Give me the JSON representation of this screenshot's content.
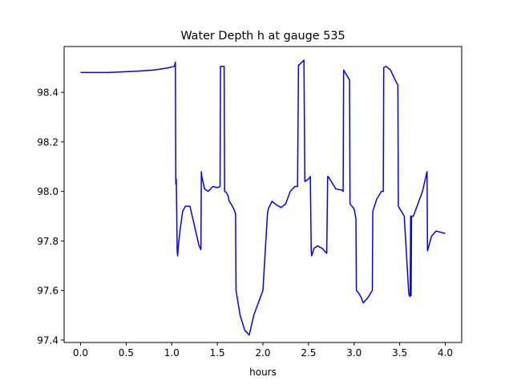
{
  "chart_data": {
    "type": "line",
    "title": "Water Depth h at gauge 535",
    "xlabel": "hours",
    "ylabel": "",
    "xlim": [
      -0.18,
      4.18
    ],
    "ylim": [
      97.39,
      98.585
    ],
    "xticks": [
      0.0,
      0.5,
      1.0,
      1.5,
      2.0,
      2.5,
      3.0,
      3.5,
      4.0
    ],
    "xtick_labels": [
      "0.0",
      "0.5",
      "1.0",
      "1.5",
      "2.0",
      "2.5",
      "3.0",
      "3.5",
      "4.0"
    ],
    "yticks": [
      97.4,
      97.6,
      97.8,
      98.0,
      98.2,
      98.4
    ],
    "ytick_labels": [
      "97.4",
      "97.6",
      "97.8",
      "98.0",
      "98.2",
      "98.4"
    ],
    "grid": false,
    "legend": "none",
    "series": [
      {
        "color": "#0000ff",
        "x": [
          0.0,
          0.3,
          0.6,
          0.8,
          0.95,
          1.03,
          1.04,
          1.045,
          1.05,
          1.06,
          1.065,
          1.07,
          1.09,
          1.12,
          1.15,
          1.2,
          1.25,
          1.3,
          1.32,
          1.325,
          1.33,
          1.36,
          1.4,
          1.45,
          1.5,
          1.53,
          1.535,
          1.54,
          1.575,
          1.58,
          1.6,
          1.62,
          1.63,
          1.65,
          1.68,
          1.7,
          1.705,
          1.75,
          1.8,
          1.85,
          1.9,
          1.95,
          2.0,
          2.05,
          2.06,
          2.1,
          2.15,
          2.2,
          2.25,
          2.3,
          2.35,
          2.38,
          2.39,
          2.395,
          2.45,
          2.46,
          2.5,
          2.51,
          2.52,
          2.53,
          2.535,
          2.56,
          2.6,
          2.65,
          2.7,
          2.71,
          2.715,
          2.75,
          2.8,
          2.87,
          2.88,
          2.885,
          2.95,
          2.955,
          3.0,
          3.02,
          3.025,
          3.05,
          3.08,
          3.1,
          3.15,
          3.2,
          3.205,
          3.25,
          3.3,
          3.32,
          3.325,
          3.35,
          3.4,
          3.45,
          3.48,
          3.485,
          3.55,
          3.6,
          3.605,
          3.615,
          3.62,
          3.625,
          3.63,
          3.65,
          3.7,
          3.75,
          3.8,
          3.805,
          3.85,
          3.9,
          4.0
        ],
        "y": [
          98.48,
          98.48,
          98.485,
          98.49,
          98.498,
          98.505,
          98.522,
          98.03,
          98.05,
          97.76,
          97.74,
          97.77,
          97.84,
          97.92,
          97.94,
          97.94,
          97.86,
          97.78,
          97.765,
          98.08,
          98.06,
          98.01,
          98.0,
          98.02,
          98.015,
          98.02,
          98.505,
          98.505,
          98.505,
          98.0,
          97.995,
          97.98,
          97.96,
          97.95,
          97.93,
          97.91,
          97.6,
          97.5,
          97.44,
          97.42,
          97.5,
          97.55,
          97.6,
          97.91,
          97.93,
          97.96,
          97.945,
          97.935,
          97.95,
          98.0,
          98.02,
          98.02,
          98.51,
          98.51,
          98.53,
          98.04,
          98.05,
          98.055,
          98.06,
          97.76,
          97.74,
          97.77,
          97.78,
          97.77,
          97.75,
          98.06,
          98.06,
          98.04,
          98.01,
          98.005,
          98.0,
          98.49,
          98.45,
          97.95,
          97.93,
          97.89,
          97.6,
          97.59,
          97.57,
          97.55,
          97.57,
          97.6,
          97.92,
          97.97,
          98.0,
          98.0,
          98.5,
          98.505,
          98.49,
          98.45,
          98.43,
          97.94,
          97.9,
          97.585,
          97.58,
          97.575,
          97.9,
          97.58,
          97.9,
          97.9,
          97.95,
          98.0,
          98.08,
          97.76,
          97.82,
          97.84,
          97.83
        ]
      }
    ]
  }
}
